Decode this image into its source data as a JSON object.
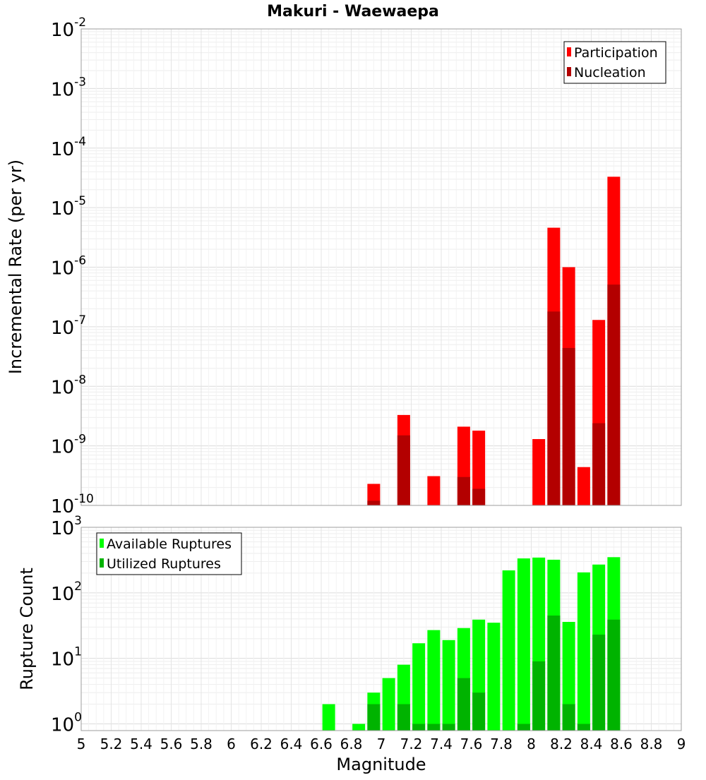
{
  "title": "Makuri - Waewaepa",
  "xlabel": "Magnitude",
  "chart_data": [
    {
      "type": "bar",
      "scale": "log",
      "ylabel": "Incremental Rate (per yr)",
      "ylim": [
        1e-10,
        0.01
      ],
      "ytick_base": "10",
      "ytick_exponents": [
        "-10",
        "-9",
        "-8",
        "-7",
        "-6",
        "-5",
        "-4",
        "-3",
        "-2"
      ],
      "xlim": [
        5,
        9
      ],
      "x": [
        6.95,
        7.15,
        7.35,
        7.55,
        7.65,
        8.05,
        8.15,
        8.25,
        8.35,
        8.45,
        8.55
      ],
      "series": [
        {
          "name": "Participation",
          "color": "#ff0000",
          "values": [
            2.3e-10,
            3.3e-09,
            3.1e-10,
            2.1e-09,
            1.8e-09,
            1.3e-09,
            4.6e-06,
            1e-06,
            4.4e-10,
            1.3e-07,
            3.3e-05
          ]
        },
        {
          "name": "Nucleation",
          "color": "#b30000",
          "values": [
            1.2e-10,
            1.5e-09,
            null,
            3e-10,
            1.9e-10,
            null,
            1.8e-07,
            4.4e-08,
            null,
            2.4e-09,
            5.1e-07
          ]
        }
      ],
      "legend": "top-right",
      "grid": true
    },
    {
      "type": "bar",
      "scale": "log",
      "ylabel": "Rupture Count",
      "ylim": [
        0.79,
        1000
      ],
      "ytick_base": "10",
      "ytick_exponents": [
        "0",
        "1",
        "2",
        "3"
      ],
      "xlim": [
        5,
        9
      ],
      "x": [
        6.65,
        6.85,
        6.95,
        7.05,
        7.15,
        7.25,
        7.35,
        7.45,
        7.55,
        7.65,
        7.75,
        7.85,
        7.95,
        8.05,
        8.15,
        8.25,
        8.35,
        8.45,
        8.55
      ],
      "series": [
        {
          "name": "Available Ruptures",
          "color": "#00ff00",
          "values": [
            2,
            1,
            3,
            5,
            8,
            17,
            27,
            19,
            29,
            39,
            35,
            220,
            335,
            345,
            320,
            36,
            205,
            270,
            350
          ]
        },
        {
          "name": "Utilized Ruptures",
          "color": "#00b300",
          "values": [
            null,
            null,
            2,
            null,
            2,
            1,
            1,
            1,
            5,
            3,
            null,
            null,
            1,
            9,
            45,
            2,
            1,
            23,
            39
          ]
        }
      ],
      "legend": "top-left",
      "grid": true
    }
  ],
  "xticks": [
    "5",
    "5.2",
    "5.4",
    "5.6",
    "5.8",
    "6",
    "6.2",
    "6.4",
    "6.6",
    "6.8",
    "7",
    "7.2",
    "7.4",
    "7.6",
    "7.8",
    "8",
    "8.2",
    "8.4",
    "8.6",
    "8.8",
    "9"
  ]
}
